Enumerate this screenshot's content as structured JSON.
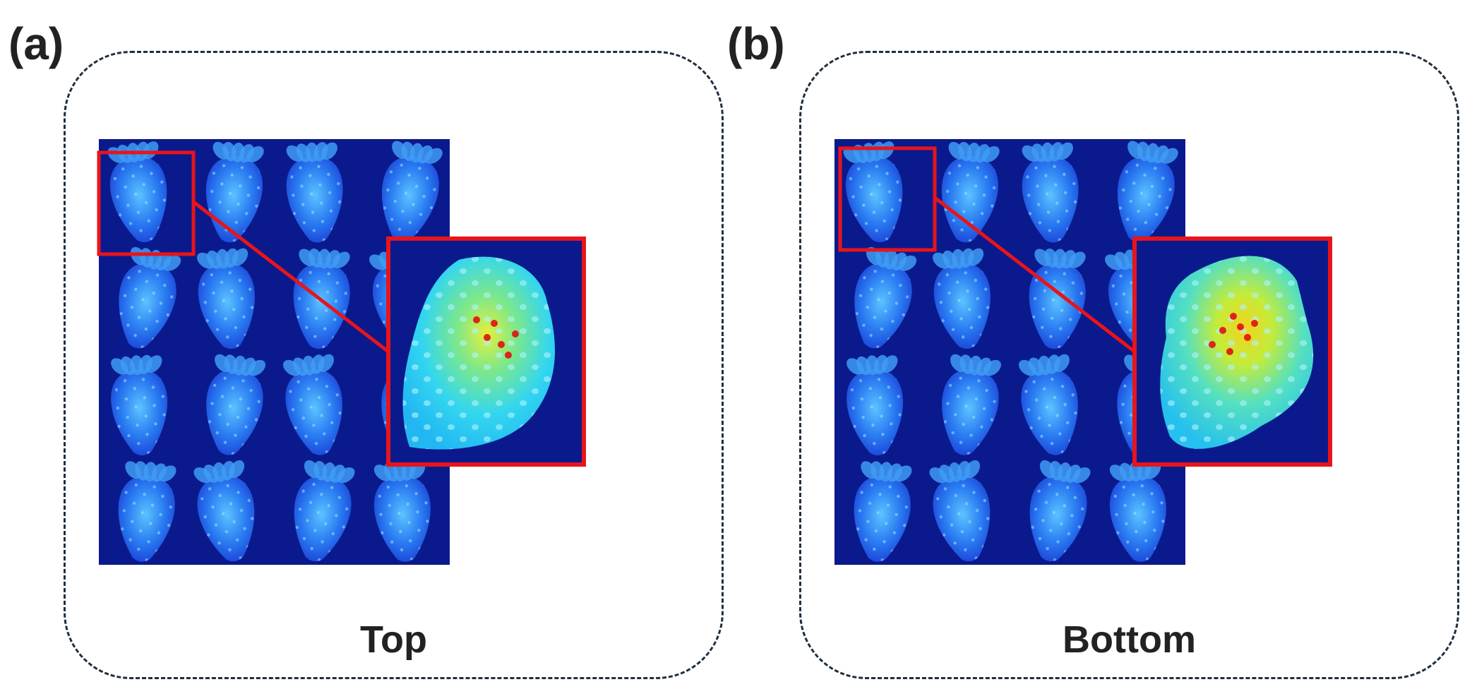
{
  "panels": [
    {
      "id": "a",
      "label": "(a)",
      "caption": "Top"
    },
    {
      "id": "b",
      "label": "(b)",
      "caption": "Bottom"
    }
  ],
  "colors": {
    "tray_background": "#0a1a8c",
    "fruit_base": "#1f5de8",
    "fruit_highlight": "#4fb6ff",
    "zoom_background": "#0a1a8c",
    "zoom_fruit": "#33d6f0",
    "hotspot_yellow": "#d8ee3a",
    "hotspot_red": "#e01010",
    "highlight_box": "#e8141b",
    "frame_border": "#1f2f3f"
  }
}
